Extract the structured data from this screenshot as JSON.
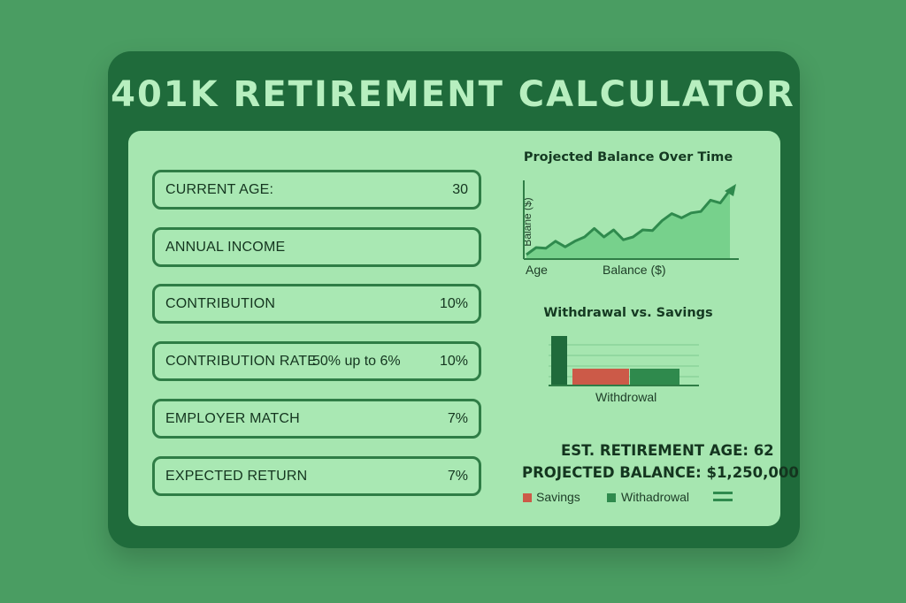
{
  "title": "401K RETIREMENT CALCULATOR",
  "fields": [
    {
      "label": "CURRENT AGE:",
      "value": "30"
    },
    {
      "label": "ANNUAL INCOME",
      "value": ""
    },
    {
      "label": "CONTRIBUTION",
      "value": "10%"
    },
    {
      "label": "CONTRIBUTION RATE",
      "middle": "50% up to 6%",
      "value": "10%"
    },
    {
      "label": "EMPLOYER MATCH",
      "value": "7%"
    },
    {
      "label": "EXPECTED RETURN",
      "value": "7%"
    }
  ],
  "line_chart": {
    "title": "Projected Balance Over Time",
    "ylabel": "Balane ($)",
    "xlabel_left": "Age",
    "xlabel_right": "Balance ($)"
  },
  "bar_chart": {
    "title": "Withdrawal vs. Savings",
    "xlabel": "Withdrowal"
  },
  "summary": {
    "retirement_age": "EST. RETIREMENT AGE: 62",
    "projected_balance": "PROJECTED BALANCE: $1,250,000"
  },
  "legend": [
    {
      "label": "Savings",
      "color": "#cc5a48"
    },
    {
      "label": "Withadrowal",
      "color": "#2f8a4d"
    }
  ],
  "colors": {
    "background": "#4a9d62",
    "card": "#1f6b3b",
    "panel": "#a6e6b0",
    "title": "#b7efbf",
    "line": "#2f8a4d",
    "area": "#6fcc86",
    "bar_dark": "#1f6b3b",
    "bar_red": "#cc5a48",
    "bar_green": "#2f8a4d"
  },
  "chart_data": [
    {
      "type": "area",
      "title": "Projected Balance Over Time",
      "ylabel": "Balane ($)",
      "xlabel": "Age",
      "x": [
        0,
        1,
        2,
        3,
        4,
        5,
        6,
        7,
        8,
        9,
        10,
        11,
        12,
        13,
        14,
        15,
        16,
        17,
        18,
        19,
        20,
        21
      ],
      "values": [
        5,
        15,
        14,
        24,
        16,
        24,
        30,
        42,
        30,
        40,
        26,
        30,
        40,
        39,
        53,
        63,
        57,
        64,
        66,
        82,
        78,
        96
      ],
      "ylim": [
        0,
        100
      ],
      "grid": false
    },
    {
      "type": "bar",
      "title": "Withdrawal vs. Savings",
      "categories": [
        "",
        "",
        ""
      ],
      "values": [
        100,
        34,
        34
      ],
      "xlabel": "Withdrowal",
      "grid": true
    }
  ]
}
